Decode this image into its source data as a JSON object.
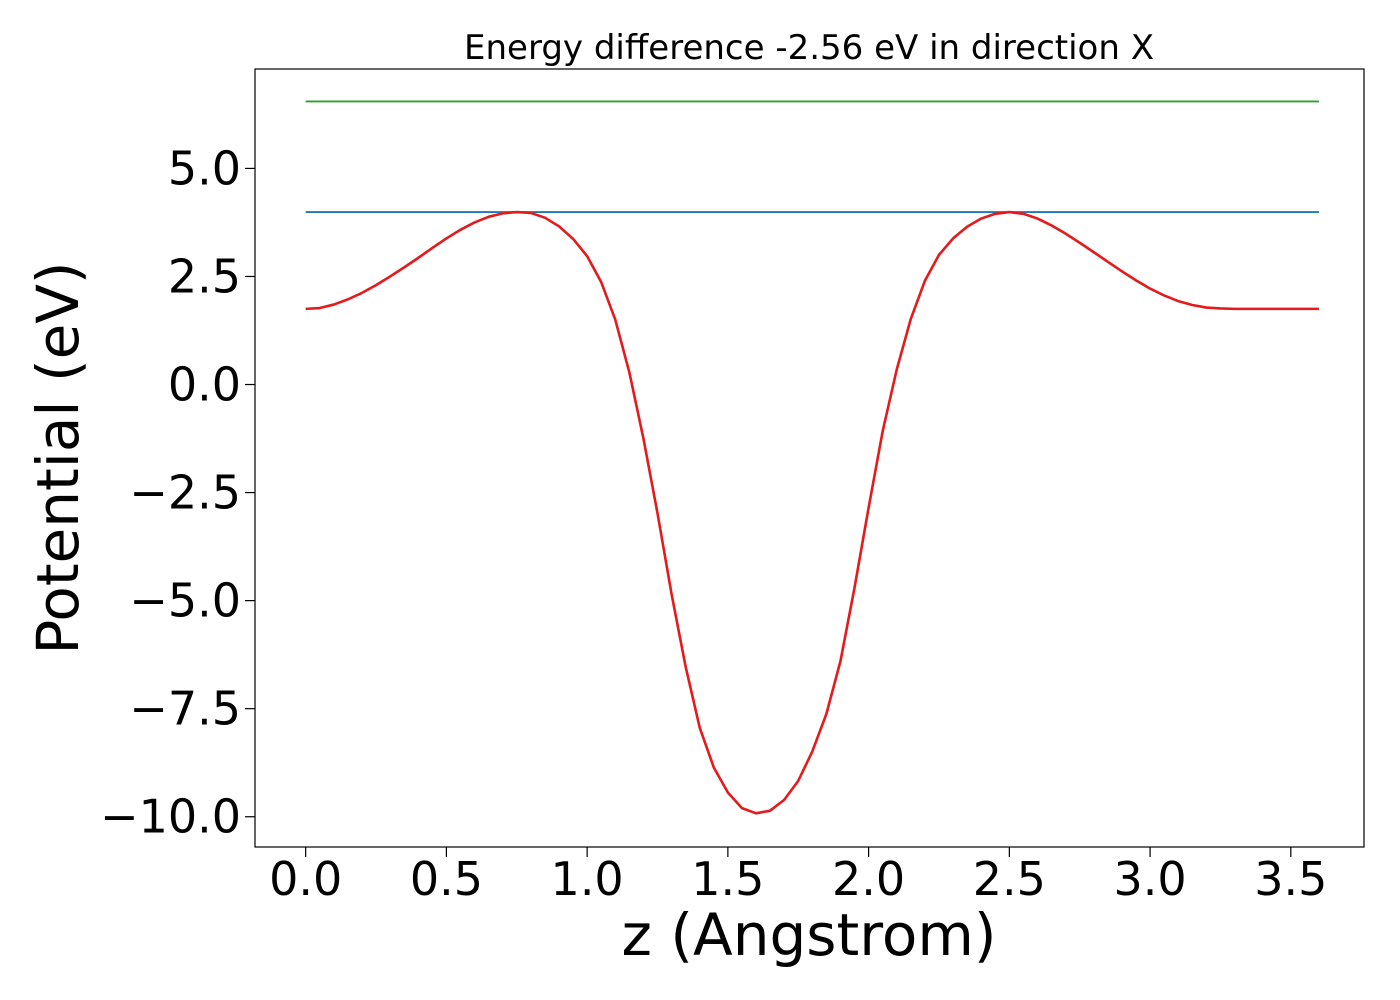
{
  "chart_data": {
    "type": "line",
    "title": "Energy difference -2.56 eV in direction X",
    "xlabel": "z (Angstrom)",
    "ylabel": "Potential (eV)",
    "xlim": [
      -0.18,
      3.76
    ],
    "ylim": [
      -10.7,
      7.3
    ],
    "grid": false,
    "x_ticks": [
      0.0,
      0.5,
      1.0,
      1.5,
      2.0,
      2.5,
      3.0,
      3.5
    ],
    "x_tick_labels": [
      "0.0",
      "0.5",
      "1.0",
      "1.5",
      "2.0",
      "2.5",
      "3.0",
      "3.5"
    ],
    "y_ticks": [
      5.0,
      2.5,
      0.0,
      -2.5,
      -5.0,
      -7.5,
      -10.0
    ],
    "y_tick_labels": [
      "5.0",
      "2.5",
      "0.0",
      "−2.5",
      "−5.0",
      "−7.5",
      "−10.0"
    ],
    "series": [
      {
        "color": "#2ca02c",
        "x": [
          0.0,
          3.6
        ],
        "y": [
          6.55,
          6.55
        ]
      },
      {
        "color": "#1f77b4",
        "x": [
          0.0,
          3.6
        ],
        "y": [
          3.99,
          3.99
        ]
      },
      {
        "color": "#e41a1c",
        "x": [
          0.0,
          0.05,
          0.1,
          0.15,
          0.2,
          0.25,
          0.3,
          0.35,
          0.4,
          0.45,
          0.5,
          0.55,
          0.6,
          0.65,
          0.7,
          0.75,
          0.8,
          0.85,
          0.9,
          0.95,
          1.0,
          1.05,
          1.1,
          1.15,
          1.2,
          1.25,
          1.3,
          1.35,
          1.4,
          1.45,
          1.5,
          1.55,
          1.6,
          1.65,
          1.7,
          1.75,
          1.8,
          1.85,
          1.9,
          1.95,
          2.0,
          2.05,
          2.1,
          2.15,
          2.2,
          2.25,
          2.3,
          2.35,
          2.4,
          2.45,
          2.5,
          2.55,
          2.6,
          2.65,
          2.7,
          2.75,
          2.8,
          2.85,
          2.9,
          2.95,
          3.0,
          3.05,
          3.1,
          3.15,
          3.2,
          3.25,
          3.3,
          3.35,
          3.4,
          3.45,
          3.5,
          3.55,
          3.6
        ],
        "y": [
          1.75,
          1.77,
          1.85,
          1.97,
          2.12,
          2.3,
          2.5,
          2.71,
          2.93,
          3.16,
          3.38,
          3.58,
          3.75,
          3.88,
          3.96,
          3.99,
          3.97,
          3.86,
          3.66,
          3.37,
          2.97,
          2.37,
          1.5,
          0.28,
          -1.25,
          -2.98,
          -4.85,
          -6.53,
          -7.94,
          -8.86,
          -9.44,
          -9.8,
          -9.92,
          -9.86,
          -9.61,
          -9.17,
          -8.49,
          -7.62,
          -6.4,
          -4.7,
          -2.85,
          -1.08,
          0.35,
          1.52,
          2.4,
          3.0,
          3.38,
          3.65,
          3.84,
          3.95,
          3.99,
          3.95,
          3.84,
          3.68,
          3.49,
          3.28,
          3.06,
          2.84,
          2.62,
          2.41,
          2.22,
          2.06,
          1.93,
          1.84,
          1.78,
          1.76,
          1.75,
          1.75,
          1.75,
          1.75,
          1.75,
          1.75,
          1.75
        ]
      }
    ]
  }
}
